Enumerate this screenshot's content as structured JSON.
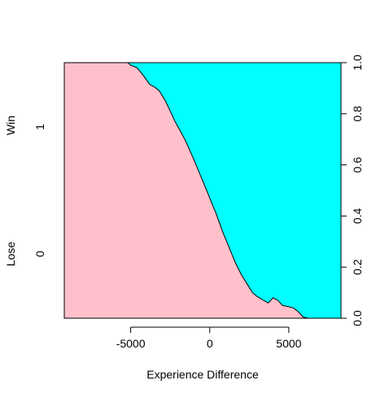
{
  "chart_data": {
    "type": "area",
    "subtype": "conditional-density",
    "xlabel": "Experience Difference",
    "ylabel_left": {
      "top_label": "Win",
      "bottom_label": "Lose",
      "top_tick": "1",
      "bottom_tick": "0"
    },
    "xlim": [
      -9200,
      8300
    ],
    "ylim": [
      0,
      1
    ],
    "x_ticks": [
      {
        "value": -5000,
        "label": "-5000"
      },
      {
        "value": 0,
        "label": "0"
      },
      {
        "value": 5000,
        "label": "5000"
      }
    ],
    "y_ticks_right": [
      {
        "value": 0.0,
        "label": "0.0"
      },
      {
        "value": 0.2,
        "label": "0.2"
      },
      {
        "value": 0.4,
        "label": "0.4"
      },
      {
        "value": 0.6,
        "label": "0.6"
      },
      {
        "value": 0.8,
        "label": "0.8"
      },
      {
        "value": 1.0,
        "label": "1.0"
      }
    ],
    "colors": {
      "lose": "#ffc0cb",
      "win": "#00ffff",
      "line": "#000000"
    },
    "series": [
      {
        "x": [
          -9200,
          -5200,
          -5000,
          -4600,
          -4200,
          -3800,
          -3500,
          -3200,
          -2800,
          -2500,
          -2200,
          -1800,
          -1500,
          -1000,
          -600,
          -200,
          0,
          400,
          800,
          1200,
          1600,
          2000,
          2400,
          2700,
          3000,
          3400,
          3700,
          4000,
          4300,
          4600,
          5000,
          5300,
          5600,
          5900,
          6200,
          6500,
          8300
        ],
        "y": [
          1.0,
          1.0,
          0.99,
          0.98,
          0.95,
          0.915,
          0.905,
          0.89,
          0.85,
          0.81,
          0.77,
          0.725,
          0.69,
          0.62,
          0.56,
          0.5,
          0.47,
          0.41,
          0.34,
          0.28,
          0.22,
          0.17,
          0.13,
          0.1,
          0.085,
          0.07,
          0.06,
          0.08,
          0.07,
          0.05,
          0.045,
          0.04,
          0.025,
          0.005,
          0.0,
          0.0,
          0.0
        ]
      }
    ]
  }
}
